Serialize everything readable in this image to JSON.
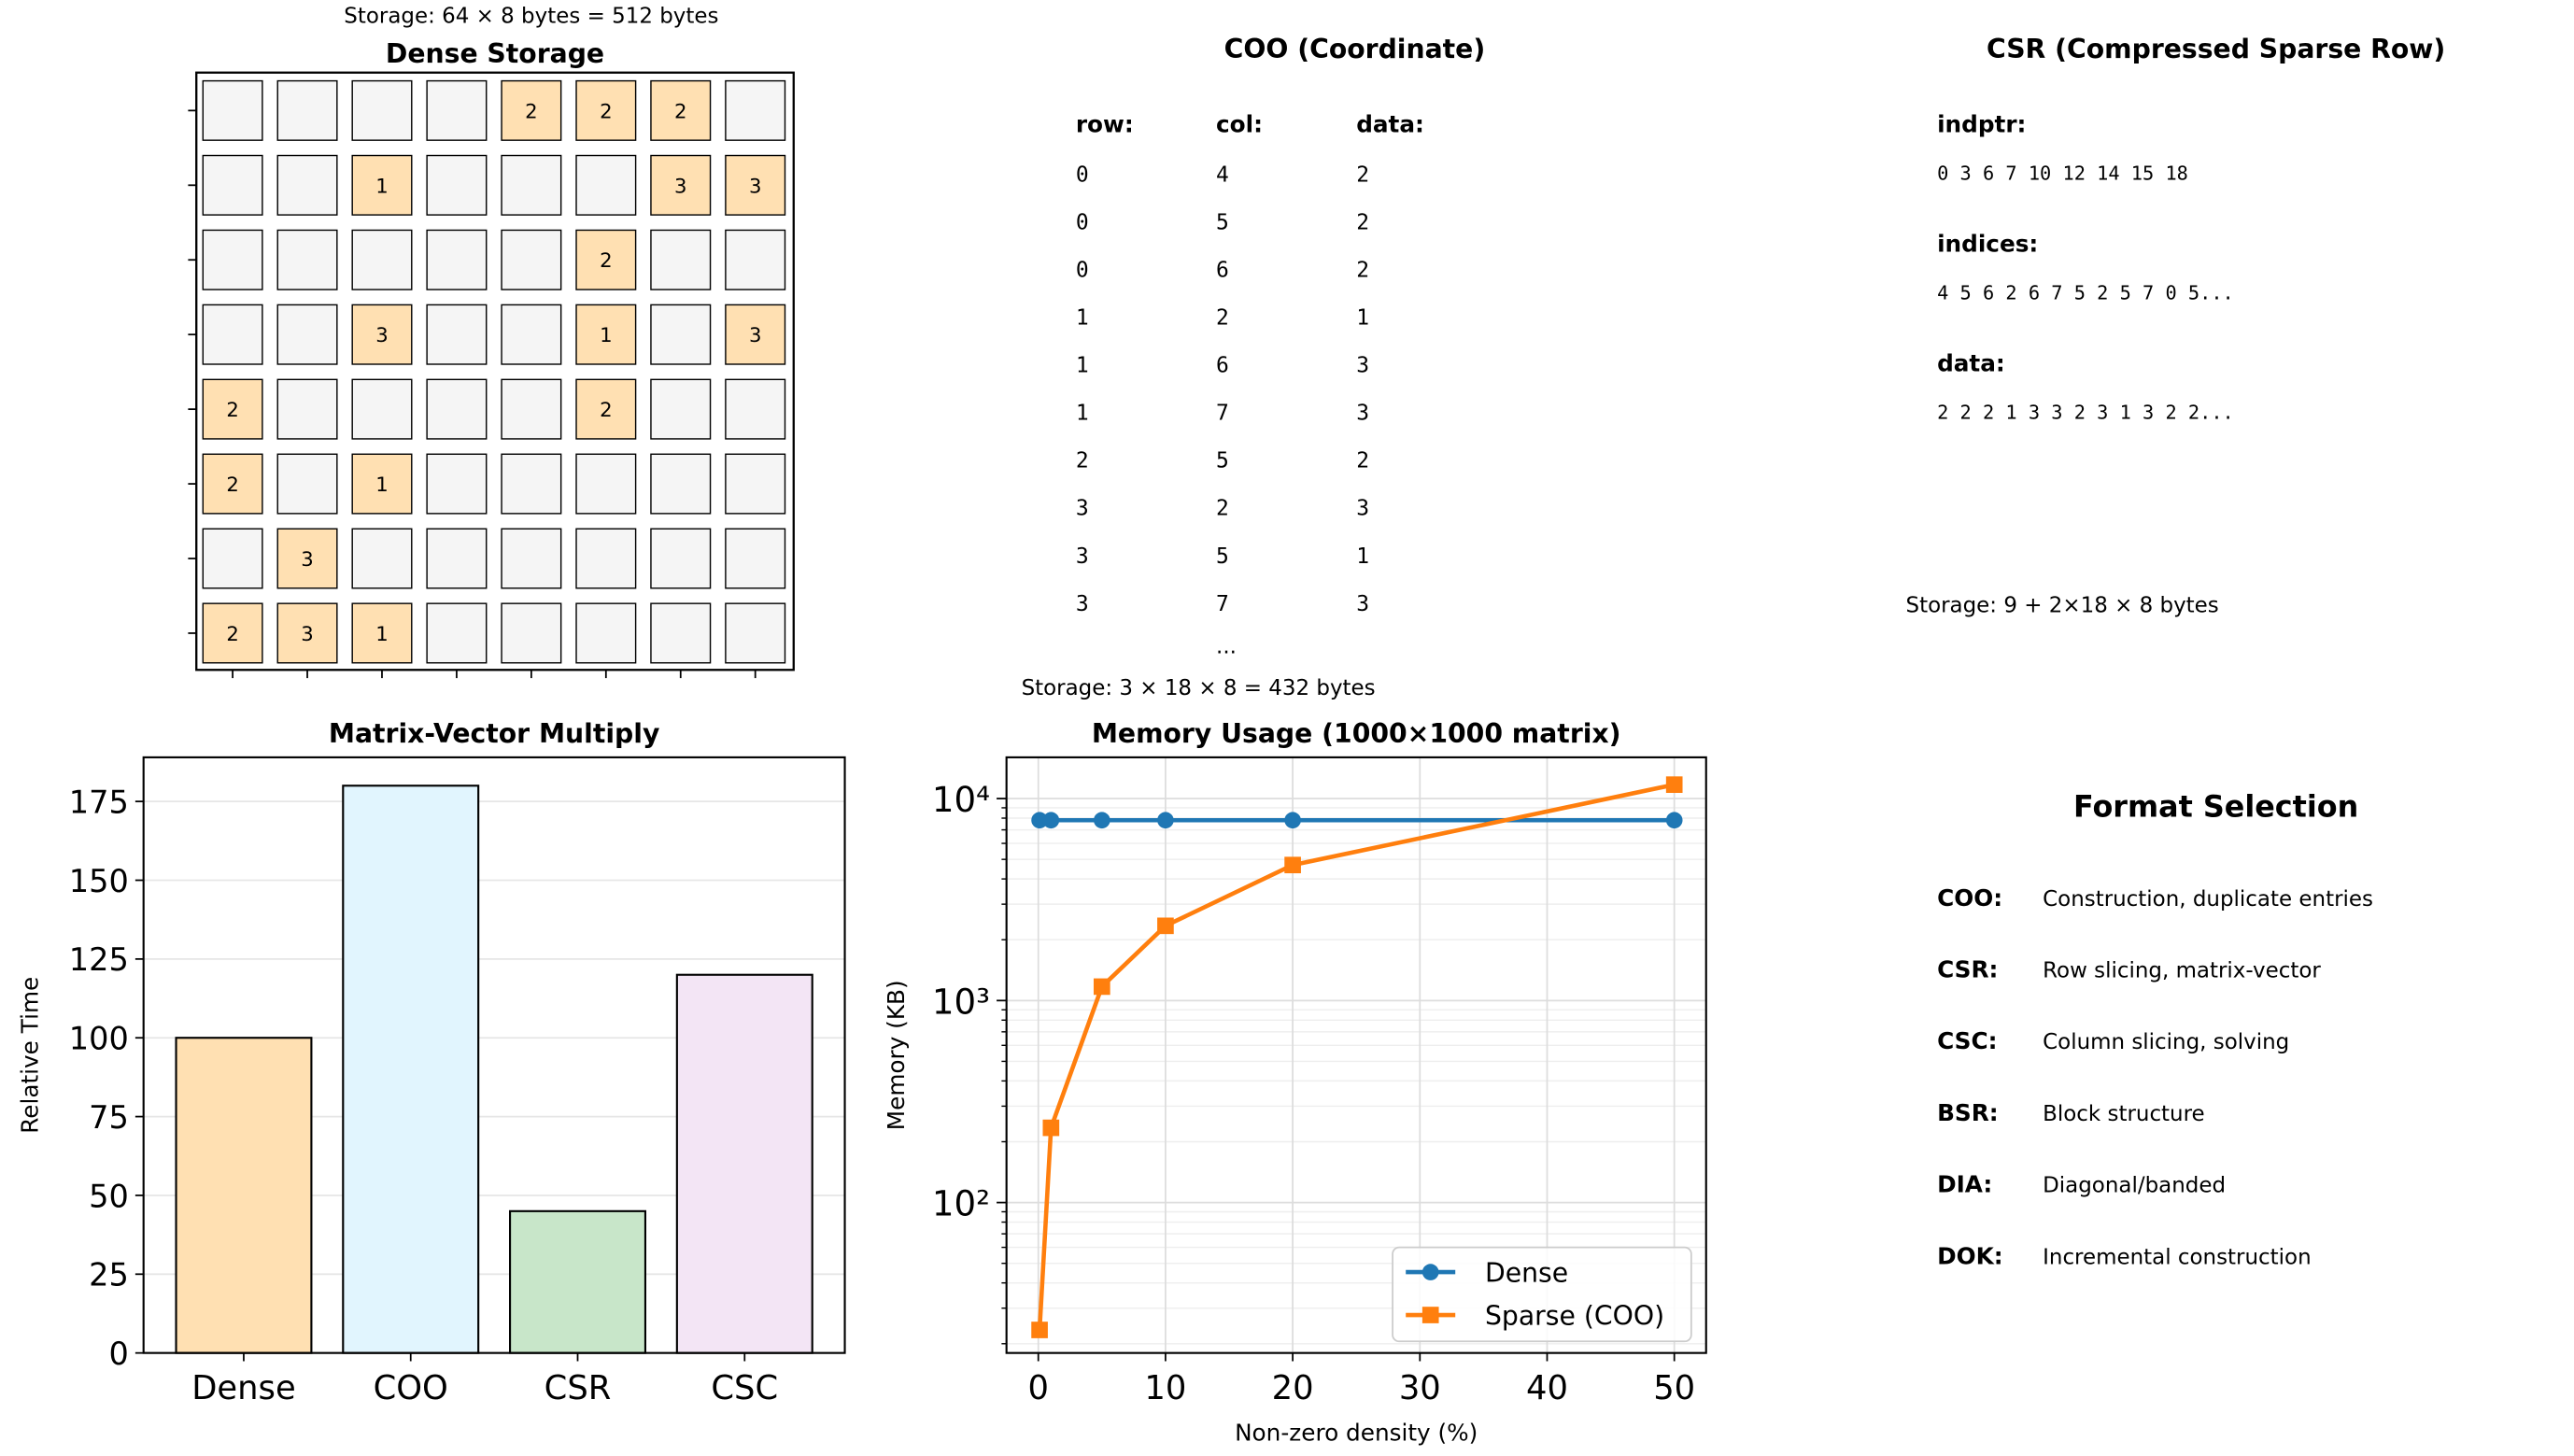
{
  "dense": {
    "title": "Dense Storage",
    "storage": "Storage: 64 × 8 bytes = 512 bytes",
    "matrix": [
      [
        0,
        0,
        0,
        0,
        2,
        2,
        2,
        0
      ],
      [
        0,
        0,
        1,
        0,
        0,
        0,
        3,
        3
      ],
      [
        0,
        0,
        0,
        0,
        0,
        2,
        0,
        0
      ],
      [
        0,
        0,
        3,
        0,
        0,
        1,
        0,
        3
      ],
      [
        2,
        0,
        0,
        0,
        0,
        2,
        0,
        0
      ],
      [
        2,
        0,
        1,
        0,
        0,
        0,
        0,
        0
      ],
      [
        0,
        3,
        0,
        0,
        0,
        0,
        0,
        0
      ],
      [
        2,
        3,
        1,
        0,
        0,
        0,
        0,
        0
      ]
    ],
    "nonzero_color": "#ffe0b2",
    "zero_color": "#f5f5f5"
  },
  "coo": {
    "title": "COO (Coordinate)",
    "headers": [
      "row:",
      "col:",
      "data:"
    ],
    "rows": [
      [
        "0",
        "4",
        "2"
      ],
      [
        "0",
        "5",
        "2"
      ],
      [
        "0",
        "6",
        "2"
      ],
      [
        "1",
        "2",
        "1"
      ],
      [
        "1",
        "6",
        "3"
      ],
      [
        "1",
        "7",
        "3"
      ],
      [
        "2",
        "5",
        "2"
      ],
      [
        "3",
        "2",
        "3"
      ],
      [
        "3",
        "5",
        "1"
      ],
      [
        "3",
        "7",
        "3"
      ]
    ],
    "ellipsis": "...",
    "storage": "Storage: 3 × 18 × 8 = 432 bytes"
  },
  "csr": {
    "title": "CSR (Compressed Sparse Row)",
    "sections": [
      {
        "label": "indptr:",
        "value": "0 3 6 7 10 12 14 15 18"
      },
      {
        "label": "indices:",
        "value": "4 5 6 2 6 7 5 2 5 7 0 5..."
      },
      {
        "label": "data:",
        "value": "2 2 2 1 3 3 2 3 1 3 2 2..."
      }
    ],
    "storage": "Storage: 9 + 2×18 × 8 bytes"
  },
  "format_selection": {
    "title": "Format Selection",
    "items": [
      {
        "name": "COO:",
        "desc": "Construction, duplicate entries"
      },
      {
        "name": "CSR:",
        "desc": "Row slicing, matrix-vector"
      },
      {
        "name": "CSC:",
        "desc": "Column slicing, solving"
      },
      {
        "name": "BSR:",
        "desc": "Block structure"
      },
      {
        "name": "DIA:",
        "desc": "Diagonal/banded"
      },
      {
        "name": "DOK:",
        "desc": "Incremental construction"
      }
    ]
  },
  "chart_data": [
    {
      "type": "bar",
      "title": "Matrix-Vector Multiply",
      "xlabel": "",
      "ylabel": "Relative Time",
      "categories": [
        "Dense",
        "COO",
        "CSR",
        "CSC"
      ],
      "values": [
        100,
        180,
        45,
        120
      ],
      "colors": [
        "#ffe0b2",
        "#e1f5fe",
        "#c8e6c9",
        "#f3e5f5"
      ],
      "ylim": [
        0,
        189
      ],
      "yticks": [
        0,
        25,
        50,
        75,
        100,
        125,
        150,
        175
      ],
      "grid": true
    },
    {
      "type": "line",
      "title": "Memory Usage (1000×1000 matrix)",
      "xlabel": "Non-zero density (%)",
      "ylabel": "Memory (KB)",
      "yscale": "log",
      "xlim": [
        -2.5,
        52.5
      ],
      "ylim": [
        18,
        16000
      ],
      "xticks": [
        0,
        10,
        20,
        30,
        40,
        50
      ],
      "yticks": [
        {
          "value": 100,
          "label": "10²"
        },
        {
          "value": 1000,
          "label": "10³"
        },
        {
          "value": 10000,
          "label": "10⁴"
        }
      ],
      "x": [
        0.1,
        1,
        5,
        10,
        20,
        50
      ],
      "series": [
        {
          "name": "Dense",
          "values": [
            7812.5,
            7812.5,
            7812.5,
            7812.5,
            7812.5,
            7812.5
          ],
          "color": "#1f77b4",
          "marker": "circle"
        },
        {
          "name": "Sparse (COO)",
          "values": [
            23.4,
            234.4,
            1171.9,
            2343.8,
            4687.5,
            11718.8
          ],
          "color": "#ff7f0e",
          "marker": "square"
        }
      ],
      "legend": "lower-right",
      "grid": true
    }
  ]
}
